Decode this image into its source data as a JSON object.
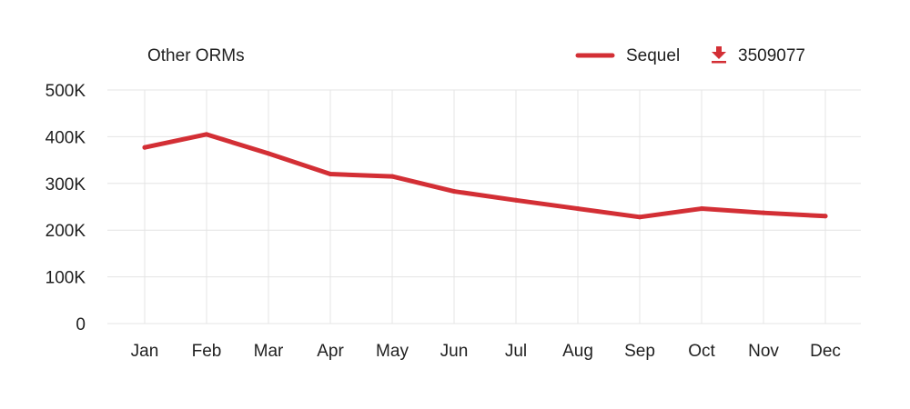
{
  "chart_data": {
    "type": "line",
    "title": "Other ORMs",
    "categories": [
      "Jan",
      "Feb",
      "Mar",
      "Apr",
      "May",
      "Jun",
      "Jul",
      "Aug",
      "Sep",
      "Oct",
      "Nov",
      "Dec"
    ],
    "series": [
      {
        "name": "Sequel",
        "color": "#d32f35",
        "values": [
          377000,
          405000,
          364000,
          320000,
          315000,
          283000,
          264000,
          246000,
          228000,
          246000,
          237000,
          230000
        ]
      }
    ],
    "downloads_total": "3509077",
    "download_icon": "download-arrow-icon",
    "yticks": [
      "0",
      "100K",
      "200K",
      "300K",
      "400K",
      "500K"
    ],
    "ylim": [
      0,
      500000
    ],
    "grid": true,
    "legend_position": "top-right"
  }
}
